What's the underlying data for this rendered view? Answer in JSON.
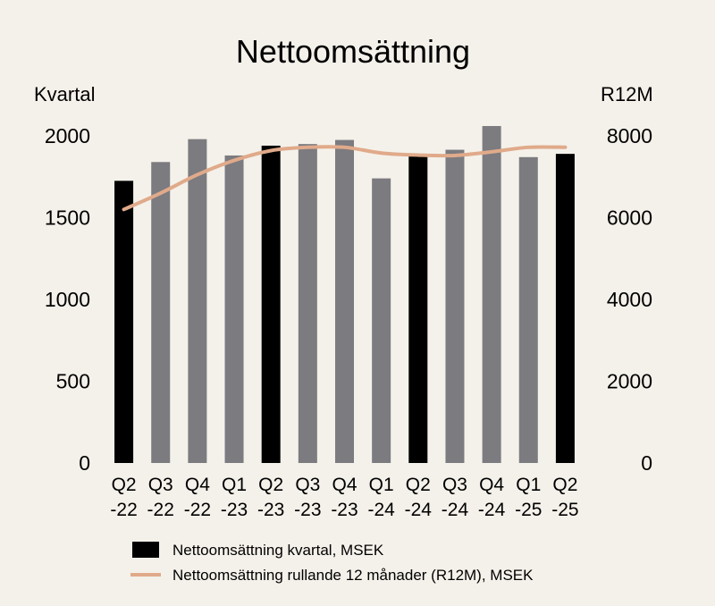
{
  "chart_data": {
    "type": "bar",
    "title": "Nettoomsättning",
    "ylabel_left": "Kvartal",
    "ylabel_right": "R12M",
    "categories": [
      [
        "Q2",
        "-22"
      ],
      [
        "Q3",
        "-22"
      ],
      [
        "Q4",
        "-22"
      ],
      [
        "Q1",
        "-23"
      ],
      [
        "Q2",
        "-23"
      ],
      [
        "Q3",
        "-23"
      ],
      [
        "Q4",
        "-23"
      ],
      [
        "Q1",
        "-24"
      ],
      [
        "Q2",
        "-24"
      ],
      [
        "Q3",
        "-24"
      ],
      [
        "Q4",
        "-24"
      ],
      [
        "Q1",
        "-25"
      ],
      [
        "Q2",
        "-25"
      ]
    ],
    "ylim_left": [
      0,
      2000
    ],
    "yticks_left": [
      "0",
      "500",
      "1000",
      "1500",
      "2000"
    ],
    "ylim_right": [
      0,
      8000
    ],
    "yticks_right": [
      "0",
      "2000",
      "4000",
      "6000",
      "8000"
    ],
    "series": [
      {
        "name": "Nettoomsättning kvartal, MSEK",
        "type": "bar",
        "axis": "left",
        "values": [
          1725,
          1840,
          1980,
          1880,
          1940,
          1950,
          1975,
          1740,
          1880,
          1915,
          2060,
          1870,
          1890
        ],
        "highlight": [
          true,
          false,
          false,
          false,
          true,
          false,
          false,
          false,
          true,
          false,
          false,
          false,
          true
        ]
      },
      {
        "name": "Nettoomsättning rullande 12 månader (R12M), MSEK",
        "type": "line",
        "axis": "right",
        "values": [
          6200,
          6600,
          7050,
          7400,
          7640,
          7720,
          7720,
          7580,
          7530,
          7520,
          7610,
          7720,
          7720
        ]
      }
    ],
    "colors": {
      "bar_highlight": "#000000",
      "bar_default": "#7b7b80",
      "line": "#e0aa8a",
      "background": "#f4f1ea"
    },
    "legend_position": "bottom",
    "grid": false
  }
}
